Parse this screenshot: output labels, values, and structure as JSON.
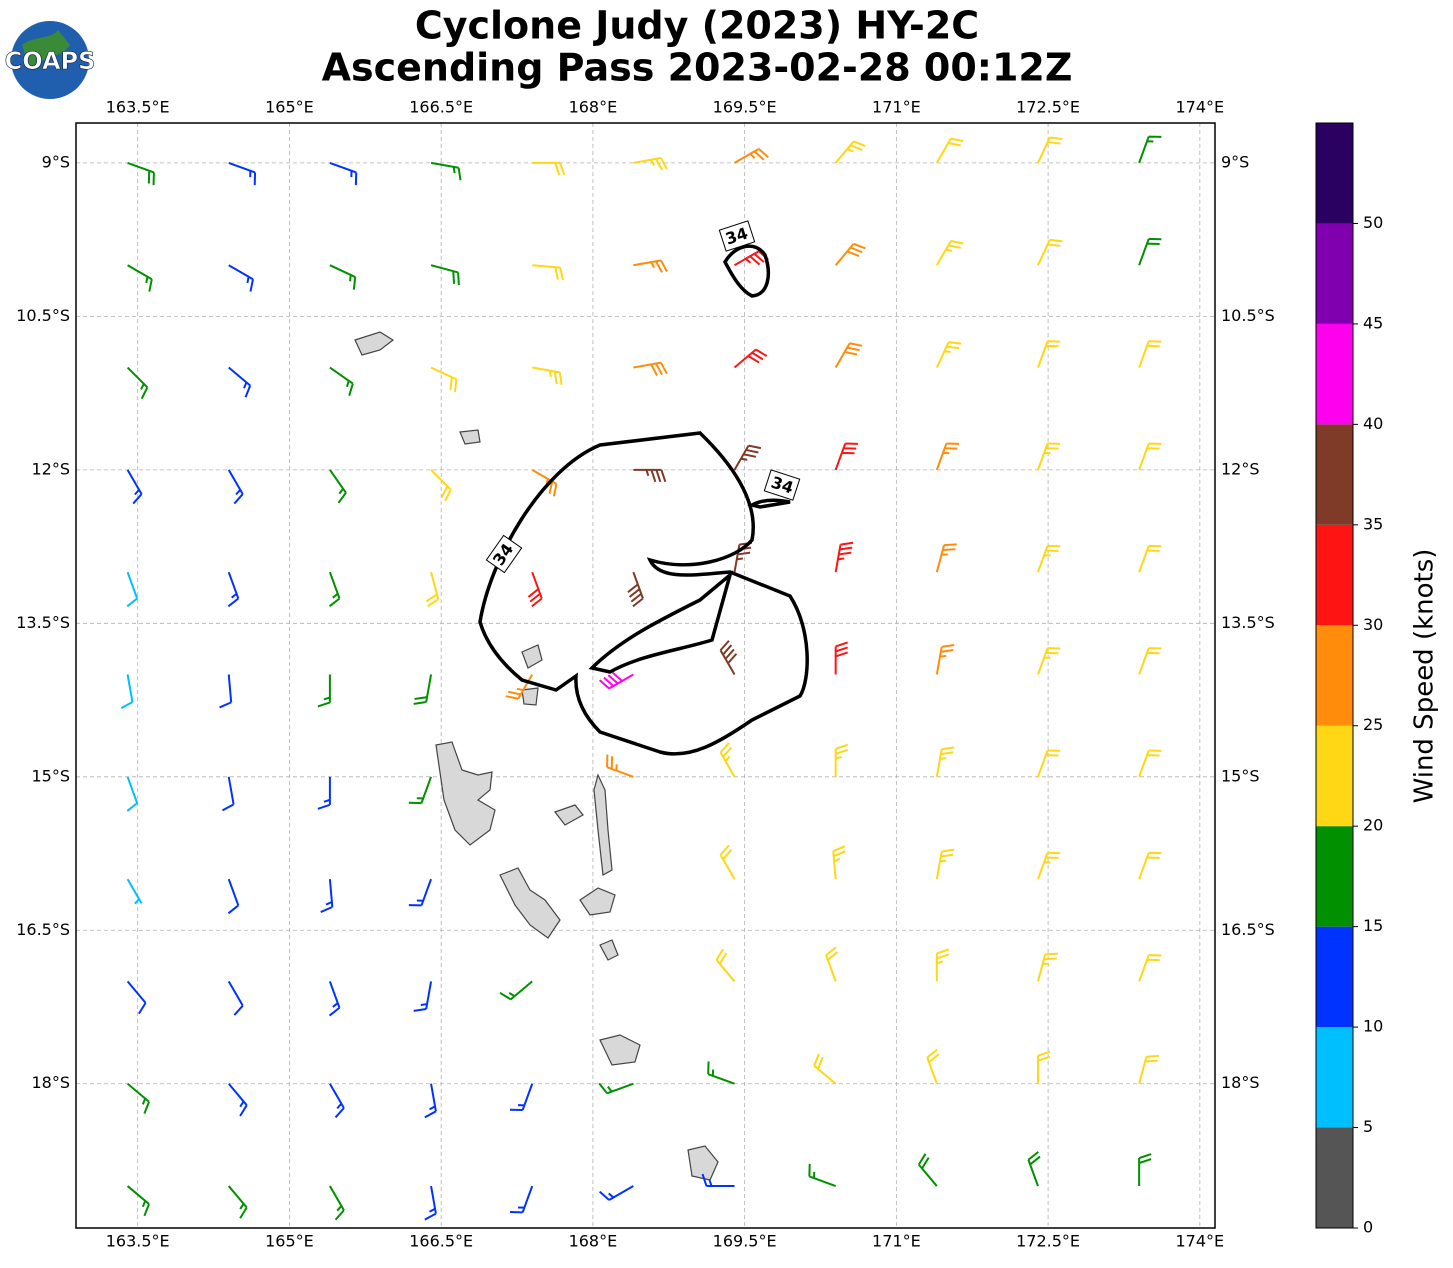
{
  "chart_data": {
    "type": "wind-barbs",
    "title": "Cyclone Judy (2023) HY-2C",
    "subtitle": "Ascending Pass 2023-02-28 00:12Z",
    "logo": "COAPS",
    "xlim": [
      162.89,
      174.15
    ],
    "ylim": [
      -19.41,
      -8.61
    ],
    "xticks": [
      {
        "value": 163.5,
        "label": "163.5°E"
      },
      {
        "value": 165,
        "label": "165°E"
      },
      {
        "value": 166.5,
        "label": "166.5°E"
      },
      {
        "value": 168,
        "label": "168°E"
      },
      {
        "value": 169.5,
        "label": "169.5°E"
      },
      {
        "value": 171,
        "label": "171°E"
      },
      {
        "value": 172.5,
        "label": "172.5°E"
      },
      {
        "value": 174,
        "label": "174°E"
      }
    ],
    "yticks": [
      {
        "value": -9,
        "label": "9°S"
      },
      {
        "value": -10.5,
        "label": "10.5°S"
      },
      {
        "value": -12,
        "label": "12°S"
      },
      {
        "value": -13.5,
        "label": "13.5°S"
      },
      {
        "value": -15,
        "label": "15°S"
      },
      {
        "value": -16.5,
        "label": "16.5°S"
      },
      {
        "value": -18,
        "label": "18°S"
      }
    ],
    "grid": true,
    "contour_label": "34",
    "lons": [
      163.4,
      164.4,
      165.4,
      166.4,
      167.4,
      168.4,
      169.4,
      170.4,
      171.4,
      172.4,
      173.4
    ],
    "lats": [
      -9,
      -10,
      -11,
      -12,
      -13,
      -14,
      -15,
      -16,
      -17,
      -18,
      -19
    ],
    "speeds": [
      [
        18,
        13,
        13,
        17,
        22,
        23,
        27,
        23,
        22,
        21,
        17
      ],
      [
        16,
        14,
        17,
        18,
        22,
        26,
        33,
        28,
        23,
        22,
        19
      ],
      [
        15,
        13,
        17,
        21,
        24,
        28,
        32,
        28,
        24,
        22,
        20
      ],
      [
        13,
        14,
        17,
        22,
        27,
        36,
        37,
        32,
        26,
        23,
        21
      ],
      [
        9,
        13,
        16,
        22,
        30,
        38,
        37,
        33,
        27,
        23,
        22
      ],
      [
        8,
        12,
        15,
        18,
        26,
        42,
        38,
        31,
        26,
        23,
        22
      ],
      [
        8,
        12,
        14,
        16,
        null,
        26,
        24,
        24,
        23,
        22,
        22
      ],
      [
        7,
        11,
        13,
        14,
        null,
        null,
        22,
        23,
        24,
        23,
        22
      ],
      [
        11,
        12,
        13,
        14,
        16,
        null,
        20,
        22,
        23,
        23,
        22
      ],
      [
        15,
        14,
        13,
        13,
        14,
        16,
        17,
        20,
        22,
        22,
        21
      ],
      [
        17,
        16,
        15,
        14,
        13,
        14,
        14,
        16,
        18,
        19,
        18
      ]
    ],
    "directions": [
      [
        110,
        110,
        110,
        100,
        90,
        80,
        60,
        40,
        30,
        25,
        20
      ],
      [
        120,
        120,
        115,
        105,
        95,
        80,
        60,
        40,
        30,
        25,
        20
      ],
      [
        135,
        130,
        125,
        115,
        100,
        80,
        50,
        30,
        25,
        20,
        20
      ],
      [
        150,
        150,
        145,
        135,
        120,
        90,
        30,
        20,
        20,
        20,
        20
      ],
      [
        160,
        160,
        160,
        165,
        160,
        160,
        10,
        10,
        15,
        20,
        20
      ],
      [
        170,
        175,
        180,
        190,
        210,
        240,
        330,
        0,
        10,
        20,
        20
      ],
      [
        160,
        170,
        180,
        200,
        null,
        290,
        330,
        0,
        10,
        20,
        20
      ],
      [
        150,
        160,
        175,
        200,
        null,
        null,
        330,
        355,
        10,
        20,
        20
      ],
      [
        140,
        150,
        160,
        190,
        230,
        null,
        320,
        340,
        0,
        15,
        20
      ],
      [
        130,
        140,
        150,
        170,
        200,
        250,
        290,
        310,
        340,
        0,
        15
      ],
      [
        130,
        140,
        150,
        170,
        200,
        240,
        270,
        290,
        320,
        340,
        0
      ]
    ],
    "colorbar": {
      "label": "Wind Speed (knots)",
      "lim": [
        0,
        55
      ],
      "ticks": [
        0,
        5,
        10,
        15,
        20,
        25,
        30,
        35,
        40,
        45,
        50
      ],
      "colors": [
        "#555555",
        "#00bfff",
        "#0033ff",
        "#009000",
        "#ffd714",
        "#ff8c0a",
        "#ff1414",
        "#7f3a28",
        "#ff00ee",
        "#8000b0",
        "#2a0060"
      ]
    }
  }
}
